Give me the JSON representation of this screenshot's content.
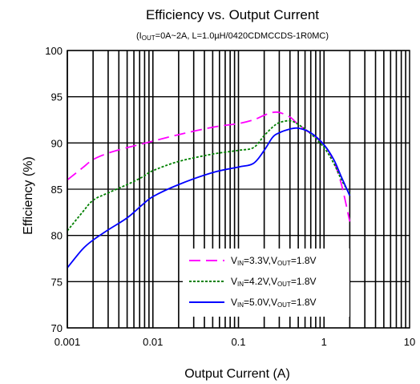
{
  "chart_data": {
    "type": "line",
    "title": "Efficiency vs. Output Current",
    "subtitle": "(I<sub>OUT</sub>=0A~2A, L=1.0µH/0420CDMCCDS-1R0MC)",
    "subtitle_plain": "(IOUT=0A~2A, L=1.0µH/0420CDMCCDS-1R0MC)",
    "xlabel": "Output Current (A)",
    "ylabel": "Efficiency (%)",
    "x_scale": "log",
    "xlim": [
      0.001,
      10
    ],
    "ylim": [
      70,
      100
    ],
    "x_ticks": [
      0.001,
      0.01,
      0.1,
      1,
      10
    ],
    "x_tick_labels": [
      "0.001",
      "0.01",
      "0.1",
      "1",
      "10"
    ],
    "y_ticks": [
      70,
      75,
      80,
      85,
      90,
      95,
      100
    ],
    "y_tick_labels": [
      "70",
      "75",
      "80",
      "85",
      "90",
      "95",
      "100"
    ],
    "grid": true,
    "legend_position": "bottom-right",
    "series": [
      {
        "name": "VIN=3.3V,VOUT=1.8V",
        "legend_parts": [
          {
            "t": "V",
            "sub": false
          },
          {
            "t": "IN",
            "sub": true
          },
          {
            "t": "=3.3V,V",
            "sub": false
          },
          {
            "t": "OUT",
            "sub": true
          },
          {
            "t": "=1.8V",
            "sub": false
          }
        ],
        "color": "#ff00ff",
        "dash": "dashed",
        "points": [
          [
            0.001,
            86.0
          ],
          [
            0.0015,
            87.3
          ],
          [
            0.002,
            88.2
          ],
          [
            0.003,
            88.9
          ],
          [
            0.005,
            89.5
          ],
          [
            0.0075,
            89.9
          ],
          [
            0.01,
            90.2
          ],
          [
            0.02,
            90.9
          ],
          [
            0.05,
            91.7
          ],
          [
            0.1,
            92.1
          ],
          [
            0.15,
            92.5
          ],
          [
            0.2,
            93.0
          ],
          [
            0.25,
            93.3
          ],
          [
            0.3,
            93.3
          ],
          [
            0.4,
            92.8
          ],
          [
            0.5,
            92.0
          ],
          [
            0.7,
            91.0
          ],
          [
            1.0,
            89.8
          ],
          [
            1.3,
            88.0
          ],
          [
            1.6,
            85.5
          ],
          [
            2.0,
            81.5
          ]
        ]
      },
      {
        "name": "VIN=4.2V,VOUT=1.8V",
        "legend_parts": [
          {
            "t": "V",
            "sub": false
          },
          {
            "t": "IN",
            "sub": true
          },
          {
            "t": "=4.2V,V",
            "sub": false
          },
          {
            "t": "OUT",
            "sub": true
          },
          {
            "t": "=1.8V",
            "sub": false
          }
        ],
        "color": "#008000",
        "dash": "dotted",
        "points": [
          [
            0.001,
            80.5
          ],
          [
            0.0015,
            82.5
          ],
          [
            0.002,
            83.8
          ],
          [
            0.003,
            84.6
          ],
          [
            0.005,
            85.5
          ],
          [
            0.0075,
            86.3
          ],
          [
            0.01,
            87.0
          ],
          [
            0.02,
            88.0
          ],
          [
            0.05,
            88.8
          ],
          [
            0.1,
            89.2
          ],
          [
            0.15,
            89.5
          ],
          [
            0.2,
            90.8
          ],
          [
            0.25,
            91.7
          ],
          [
            0.3,
            92.2
          ],
          [
            0.4,
            92.4
          ],
          [
            0.5,
            92.0
          ],
          [
            0.7,
            91.0
          ],
          [
            1.0,
            89.5
          ],
          [
            1.3,
            87.8
          ],
          [
            1.6,
            86.0
          ],
          [
            2.0,
            84.5
          ]
        ]
      },
      {
        "name": "VIN=5.0V,VOUT=1.8V",
        "legend_parts": [
          {
            "t": "V",
            "sub": false
          },
          {
            "t": "IN",
            "sub": true
          },
          {
            "t": "=5.0V,V",
            "sub": false
          },
          {
            "t": "OUT",
            "sub": true
          },
          {
            "t": "=1.8V",
            "sub": false
          }
        ],
        "color": "#0000ff",
        "dash": "solid",
        "points": [
          [
            0.001,
            76.5
          ],
          [
            0.0015,
            78.5
          ],
          [
            0.002,
            79.5
          ],
          [
            0.003,
            80.6
          ],
          [
            0.005,
            81.9
          ],
          [
            0.0075,
            83.3
          ],
          [
            0.01,
            84.2
          ],
          [
            0.02,
            85.5
          ],
          [
            0.05,
            86.8
          ],
          [
            0.1,
            87.4
          ],
          [
            0.15,
            87.8
          ],
          [
            0.2,
            89.2
          ],
          [
            0.25,
            90.6
          ],
          [
            0.3,
            91.1
          ],
          [
            0.4,
            91.5
          ],
          [
            0.5,
            91.6
          ],
          [
            0.7,
            91.1
          ],
          [
            1.0,
            89.8
          ],
          [
            1.3,
            88.2
          ],
          [
            1.6,
            86.3
          ],
          [
            2.0,
            84.3
          ]
        ]
      }
    ]
  }
}
